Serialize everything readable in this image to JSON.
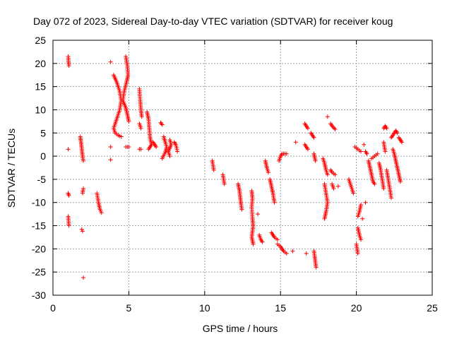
{
  "chart_data": {
    "type": "scatter",
    "title": "Day 072 of 2023, Sidereal Day-to-day VTEC variation (SDTVAR) for receiver koug",
    "xlabel": "GPS time / hours",
    "ylabel": "SDTVAR / TECUs",
    "xlim": [
      0,
      25
    ],
    "ylim": [
      -30,
      25
    ],
    "xticks": [
      0,
      5,
      10,
      15,
      20,
      25
    ],
    "yticks": [
      -30,
      -25,
      -20,
      -15,
      -10,
      -5,
      0,
      5,
      10,
      15,
      20,
      25
    ],
    "grid": true,
    "marker": "plus",
    "marker_color": "#ff0000",
    "series": [
      {
        "name": "SDTVAR",
        "segments": [
          [
            [
              1.0,
              21.5
            ],
            [
              1.05,
              19.5
            ]
          ],
          [
            [
              1.0,
              1.5
            ]
          ],
          [
            [
              1.0,
              -8.0
            ],
            [
              1.05,
              -8.5
            ]
          ],
          [
            [
              1.0,
              -13.0
            ],
            [
              1.05,
              -15.0
            ]
          ],
          [
            [
              1.8,
              4.2
            ],
            [
              1.85,
              3.0
            ],
            [
              1.9,
              1.5
            ],
            [
              1.95,
              0.0
            ],
            [
              2.0,
              -1.0
            ]
          ],
          [
            [
              2.0,
              -7.0
            ],
            [
              1.95,
              -8.0
            ]
          ],
          [
            [
              1.9,
              -15.8
            ],
            [
              1.95,
              -16.2
            ]
          ],
          [
            [
              2.0,
              -26.2
            ]
          ],
          [
            [
              2.9,
              -8.0
            ],
            [
              3.0,
              -10.0
            ],
            [
              3.1,
              -11.5
            ],
            [
              3.2,
              -12.2
            ]
          ],
          [
            [
              3.8,
              20.3
            ]
          ],
          [
            [
              3.8,
              2.0
            ]
          ],
          [
            [
              3.8,
              -0.8
            ]
          ],
          [
            [
              4.0,
              17.5
            ],
            [
              4.2,
              16.0
            ],
            [
              4.4,
              14.0
            ],
            [
              4.5,
              12.0
            ],
            [
              4.4,
              10.0
            ],
            [
              4.2,
              8.0
            ],
            [
              4.0,
              6.0
            ],
            [
              4.1,
              5.0
            ],
            [
              4.3,
              4.5
            ],
            [
              4.5,
              4.2
            ]
          ],
          [
            [
              4.8,
              21.5
            ],
            [
              4.9,
              19.5
            ],
            [
              4.95,
              17.5
            ],
            [
              4.85,
              16.0
            ],
            [
              4.7,
              14.0
            ],
            [
              4.6,
              12.0
            ],
            [
              4.8,
              10.5
            ],
            [
              4.9,
              9.0
            ],
            [
              5.0,
              7.5
            ]
          ],
          [
            [
              4.8,
              2.0
            ],
            [
              5.0,
              2.0
            ]
          ],
          [
            [
              5.7,
              14.5
            ],
            [
              5.75,
              12.0
            ],
            [
              5.8,
              10.0
            ],
            [
              5.85,
              8.5
            ]
          ],
          [
            [
              5.7,
              7.0
            ],
            [
              5.8,
              6.0
            ]
          ],
          [
            [
              5.7,
              1.5
            ],
            [
              5.8,
              1.5
            ]
          ],
          [
            [
              6.2,
              9.5
            ],
            [
              6.3,
              8.0
            ],
            [
              6.35,
              6.0
            ],
            [
              6.4,
              4.0
            ],
            [
              6.5,
              2.5
            ],
            [
              6.3,
              1.5
            ]
          ],
          [
            [
              6.6,
              3.0
            ],
            [
              6.7,
              2.5
            ],
            [
              6.8,
              2.0
            ]
          ],
          [
            [
              7.1,
              7.2
            ],
            [
              7.2,
              6.8
            ]
          ],
          [
            [
              7.3,
              4.2
            ],
            [
              7.4,
              3.0
            ],
            [
              7.5,
              2.0
            ],
            [
              7.4,
              0.8
            ],
            [
              7.2,
              -0.5
            ]
          ],
          [
            [
              7.7,
              3.5
            ],
            [
              7.8,
              2.5
            ],
            [
              7.6,
              1.0
            ],
            [
              7.7,
              0.0
            ]
          ],
          [
            [
              8.0,
              3.0
            ],
            [
              8.1,
              2.5
            ],
            [
              8.15,
              1.8
            ],
            [
              8.2,
              1.0
            ]
          ],
          [
            [
              10.5,
              -1.0
            ],
            [
              10.55,
              -2.0
            ],
            [
              10.6,
              -3.0
            ]
          ],
          [
            [
              11.2,
              -4.0
            ],
            [
              11.25,
              -5.0
            ],
            [
              11.3,
              -6.0
            ]
          ],
          [
            [
              12.2,
              -6.0
            ],
            [
              12.3,
              -7.5
            ],
            [
              12.35,
              -9.0
            ],
            [
              12.4,
              -10.5
            ],
            [
              12.45,
              -11.5
            ]
          ],
          [
            [
              13.1,
              -7.5
            ],
            [
              13.15,
              -9.0
            ],
            [
              13.1,
              -11.0
            ],
            [
              13.15,
              -13.5
            ],
            [
              13.2,
              -15.0
            ],
            [
              13.1,
              -17.5
            ],
            [
              13.2,
              -19.0
            ]
          ],
          [
            [
              13.5,
              -12.5
            ]
          ],
          [
            [
              13.6,
              -17.0
            ],
            [
              13.7,
              -18.0
            ],
            [
              13.8,
              -18.5
            ]
          ],
          [
            [
              14.0,
              -1.0
            ],
            [
              14.1,
              -2.5
            ],
            [
              14.2,
              -3.5
            ]
          ],
          [
            [
              14.3,
              -5.0
            ],
            [
              14.4,
              -6.5
            ],
            [
              14.5,
              -8.0
            ],
            [
              14.6,
              -10.0
            ]
          ],
          [
            [
              14.4,
              -16.5
            ],
            [
              14.5,
              -17.0
            ],
            [
              14.6,
              -17.5
            ],
            [
              14.8,
              -18.0
            ]
          ],
          [
            [
              14.8,
              -19.0
            ],
            [
              15.0,
              -19.5
            ],
            [
              15.2,
              -20.5
            ],
            [
              15.4,
              -21.0
            ]
          ],
          [
            [
              14.9,
              -1.0
            ],
            [
              15.0,
              0.0
            ],
            [
              15.1,
              0.5
            ],
            [
              15.4,
              0.5
            ]
          ],
          [
            [
              15.8,
              -20.5
            ]
          ],
          [
            [
              16.0,
              3.0
            ]
          ],
          [
            [
              16.6,
              7.0
            ],
            [
              16.8,
              6.0
            ]
          ],
          [
            [
              16.6,
              2.5
            ],
            [
              16.8,
              1.5
            ]
          ],
          [
            [
              16.7,
              -21.0
            ]
          ],
          [
            [
              17.0,
              5.0
            ],
            [
              17.2,
              4.0
            ]
          ],
          [
            [
              17.2,
              0.5
            ],
            [
              17.3,
              -1.0
            ]
          ],
          [
            [
              17.2,
              -20.5
            ],
            [
              17.25,
              -21.5
            ],
            [
              17.3,
              -23.0
            ],
            [
              17.35,
              -24.0
            ]
          ],
          [
            [
              17.8,
              -0.5
            ],
            [
              17.9,
              -1.5
            ],
            [
              18.0,
              -3.0
            ],
            [
              18.1,
              -4.0
            ]
          ],
          [
            [
              17.9,
              -6.0
            ],
            [
              18.0,
              -8.0
            ],
            [
              18.1,
              -10.0
            ],
            [
              18.0,
              -12.0
            ],
            [
              17.9,
              -13.5
            ]
          ],
          [
            [
              18.1,
              8.5
            ]
          ],
          [
            [
              18.3,
              7.0
            ],
            [
              18.4,
              6.5
            ],
            [
              18.6,
              5.8
            ]
          ],
          [
            [
              18.3,
              -3.0
            ],
            [
              18.4,
              -3.5
            ],
            [
              18.6,
              -4.0
            ]
          ],
          [
            [
              18.4,
              -6.0
            ],
            [
              18.5,
              -7.0
            ]
          ],
          [
            [
              18.8,
              -6.5
            ]
          ],
          [
            [
              19.5,
              -5.0
            ],
            [
              19.6,
              -6.0
            ],
            [
              19.7,
              -7.0
            ],
            [
              19.8,
              -8.0
            ]
          ],
          [
            [
              19.9,
              2.0
            ],
            [
              20.1,
              1.5
            ],
            [
              20.3,
              1.0
            ]
          ],
          [
            [
              20.0,
              -19.0
            ],
            [
              20.05,
              -20.0
            ],
            [
              20.1,
              -21.0
            ]
          ],
          [
            [
              20.3,
              -10.5
            ],
            [
              20.2,
              -12.0
            ],
            [
              20.1,
              -13.0
            ]
          ],
          [
            [
              20.1,
              -15.5
            ],
            [
              20.2,
              -17.0
            ],
            [
              20.3,
              -18.0
            ]
          ],
          [
            [
              20.4,
              -13.5
            ]
          ],
          [
            [
              20.5,
              2.5
            ]
          ],
          [
            [
              20.6,
              -10.0
            ]
          ],
          [
            [
              20.6,
              1.0
            ],
            [
              20.7,
              0.5
            ]
          ],
          [
            [
              20.8,
              -1.0
            ],
            [
              20.9,
              -2.5
            ],
            [
              21.0,
              -4.0
            ],
            [
              21.1,
              -5.5
            ],
            [
              21.2,
              -6.0
            ]
          ],
          [
            [
              21.0,
              -0.5
            ],
            [
              21.2,
              0.0
            ],
            [
              21.4,
              0.5
            ]
          ],
          [
            [
              21.5,
              -1.5
            ],
            [
              21.6,
              -3.0
            ],
            [
              21.7,
              -5.0
            ],
            [
              21.8,
              -7.0
            ]
          ],
          [
            [
              21.8,
              6.0
            ],
            [
              21.9,
              6.5
            ],
            [
              22.0,
              6.0
            ]
          ],
          [
            [
              21.8,
              3.0
            ],
            [
              21.85,
              2.0
            ],
            [
              21.9,
              1.0
            ]
          ],
          [
            [
              22.0,
              -3.0
            ],
            [
              22.1,
              -5.0
            ],
            [
              22.2,
              -7.0
            ],
            [
              22.3,
              -9.0
            ]
          ],
          [
            [
              22.3,
              4.0
            ],
            [
              22.4,
              4.5
            ],
            [
              22.5,
              5.0
            ],
            [
              22.6,
              5.5
            ],
            [
              22.7,
              5.0
            ]
          ],
          [
            [
              22.4,
              1.5
            ],
            [
              22.5,
              0.5
            ],
            [
              22.6,
              -1.0
            ],
            [
              22.7,
              -2.5
            ],
            [
              22.8,
              -4.0
            ],
            [
              22.9,
              -5.5
            ]
          ],
          [
            [
              22.8,
              4.0
            ],
            [
              22.9,
              3.5
            ],
            [
              23.0,
              3.0
            ]
          ]
        ]
      }
    ]
  }
}
